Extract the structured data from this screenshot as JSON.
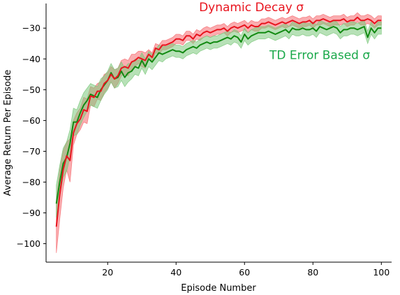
{
  "chart_data": {
    "type": "line",
    "title": "",
    "xlabel": "Episode Number",
    "ylabel": "Average Return Per Episode",
    "xlim": [
      2,
      103
    ],
    "ylim": [
      -106,
      -22
    ],
    "xticks": [
      20,
      40,
      60,
      80,
      100
    ],
    "yticks": [
      -100,
      -90,
      -80,
      -70,
      -60,
      -50,
      -40,
      -30
    ],
    "grid": false,
    "legend": "none",
    "x": [
      5,
      6,
      7,
      8,
      9,
      10,
      11,
      12,
      13,
      14,
      15,
      16,
      17,
      18,
      19,
      20,
      21,
      22,
      23,
      24,
      25,
      26,
      27,
      28,
      29,
      30,
      31,
      32,
      33,
      34,
      35,
      36,
      37,
      38,
      39,
      40,
      41,
      42,
      43,
      44,
      45,
      46,
      47,
      48,
      49,
      50,
      51,
      52,
      53,
      54,
      55,
      56,
      57,
      58,
      59,
      60,
      61,
      62,
      63,
      64,
      65,
      66,
      67,
      68,
      69,
      70,
      71,
      72,
      73,
      74,
      75,
      76,
      77,
      78,
      79,
      80,
      81,
      82,
      83,
      84,
      85,
      86,
      87,
      88,
      89,
      90,
      91,
      92,
      93,
      94,
      95,
      96,
      97,
      98,
      99,
      100
    ],
    "series": [
      {
        "name": "Dynamic Decay σ",
        "color": "#e8141e",
        "band_color": "#f56a6f",
        "values": [
          -94.5,
          -84.0,
          -76.0,
          -71.5,
          -73.0,
          -64.0,
          -61.0,
          -59.5,
          -56.5,
          -57.0,
          -52.0,
          -52.5,
          -50.5,
          -50.5,
          -48.0,
          -47.0,
          -45.0,
          -46.5,
          -45.5,
          -43.0,
          -42.5,
          -43.0,
          -41.0,
          -40.5,
          -39.5,
          -40.0,
          -40.5,
          -38.5,
          -39.5,
          -36.5,
          -37.0,
          -35.5,
          -35.5,
          -35.0,
          -34.5,
          -33.5,
          -33.5,
          -34.0,
          -32.5,
          -32.5,
          -33.5,
          -32.0,
          -32.5,
          -31.5,
          -31.0,
          -31.5,
          -31.0,
          -30.5,
          -30.5,
          -30.0,
          -31.0,
          -30.0,
          -29.5,
          -30.0,
          -29.5,
          -29.0,
          -30.0,
          -29.0,
          -29.5,
          -29.5,
          -28.5,
          -28.5,
          -28.0,
          -28.5,
          -29.0,
          -28.5,
          -28.0,
          -28.5,
          -28.0,
          -27.5,
          -28.0,
          -28.5,
          -28.0,
          -28.0,
          -27.5,
          -28.5,
          -27.5,
          -27.5,
          -27.0,
          -27.5,
          -28.0,
          -27.5,
          -27.5,
          -27.5,
          -27.0,
          -28.0,
          -27.5,
          -27.5,
          -26.5,
          -27.5,
          -27.5,
          -27.0,
          -27.5,
          -28.5,
          -27.5,
          -27.5
        ],
        "lower": [
          -103.0,
          -92.0,
          -82.0,
          -76.0,
          -80.0,
          -68.0,
          -64.5,
          -63.0,
          -60.5,
          -61.0,
          -55.0,
          -55.5,
          -53.0,
          -53.5,
          -51.0,
          -49.5,
          -47.5,
          -49.5,
          -48.0,
          -45.5,
          -45.0,
          -45.5,
          -43.5,
          -42.5,
          -41.5,
          -42.5,
          -43.0,
          -40.0,
          -41.0,
          -38.0,
          -38.5,
          -37.0,
          -37.0,
          -36.5,
          -36.0,
          -35.0,
          -35.0,
          -35.5,
          -34.0,
          -34.0,
          -35.0,
          -33.5,
          -34.0,
          -33.0,
          -32.5,
          -33.0,
          -32.5,
          -32.0,
          -32.0,
          -31.5,
          -32.5,
          -31.5,
          -31.0,
          -31.5,
          -31.0,
          -30.5,
          -31.5,
          -30.5,
          -31.0,
          -31.0,
          -30.0,
          -30.0,
          -29.5,
          -30.0,
          -30.5,
          -30.0,
          -29.5,
          -30.0,
          -29.5,
          -29.0,
          -29.5,
          -30.0,
          -29.5,
          -29.5,
          -29.0,
          -30.0,
          -29.0,
          -29.0,
          -28.5,
          -29.0,
          -29.5,
          -29.0,
          -29.0,
          -29.0,
          -28.5,
          -29.5,
          -29.0,
          -29.0,
          -28.0,
          -29.0,
          -29.0,
          -28.5,
          -29.0,
          -30.0,
          -29.0,
          -29.0
        ],
        "upper": [
          -86.0,
          -76.0,
          -70.0,
          -67.0,
          -66.0,
          -60.0,
          -57.5,
          -56.0,
          -52.5,
          -53.0,
          -49.0,
          -49.5,
          -48.0,
          -47.5,
          -45.0,
          -44.5,
          -42.5,
          -43.5,
          -43.0,
          -40.5,
          -40.0,
          -40.5,
          -38.5,
          -38.5,
          -37.5,
          -37.5,
          -38.0,
          -37.0,
          -38.0,
          -35.0,
          -35.5,
          -34.0,
          -34.0,
          -33.5,
          -33.0,
          -32.0,
          -32.0,
          -32.5,
          -31.0,
          -31.0,
          -32.0,
          -30.5,
          -31.0,
          -30.0,
          -29.5,
          -30.0,
          -29.5,
          -29.0,
          -29.0,
          -28.5,
          -29.5,
          -28.5,
          -28.0,
          -28.5,
          -28.0,
          -27.5,
          -28.5,
          -27.5,
          -28.0,
          -28.0,
          -27.0,
          -27.0,
          -26.5,
          -27.0,
          -27.5,
          -27.0,
          -26.5,
          -27.0,
          -26.5,
          -26.0,
          -26.5,
          -27.0,
          -26.5,
          -26.5,
          -26.0,
          -27.0,
          -26.0,
          -26.0,
          -25.5,
          -26.0,
          -26.5,
          -26.0,
          -26.0,
          -26.0,
          -25.5,
          -26.5,
          -26.0,
          -26.0,
          -25.0,
          -26.0,
          -26.0,
          -25.5,
          -26.0,
          -27.0,
          -26.0,
          -26.0
        ]
      },
      {
        "name": "TD Error Based σ",
        "color": "#128a12",
        "band_color": "#7cc87c",
        "values": [
          -87.0,
          -80.0,
          -74.0,
          -72.0,
          -67.5,
          -60.5,
          -60.5,
          -57.5,
          -55.0,
          -53.5,
          -51.5,
          -52.0,
          -52.5,
          -50.0,
          -48.5,
          -47.0,
          -44.5,
          -46.5,
          -46.0,
          -44.0,
          -46.0,
          -44.5,
          -44.0,
          -42.5,
          -43.0,
          -40.5,
          -42.5,
          -40.0,
          -41.0,
          -39.5,
          -38.0,
          -38.5,
          -38.0,
          -37.5,
          -37.0,
          -37.5,
          -37.5,
          -38.0,
          -37.0,
          -36.5,
          -36.0,
          -36.5,
          -35.5,
          -35.0,
          -34.5,
          -35.0,
          -34.5,
          -34.5,
          -34.0,
          -33.5,
          -33.0,
          -33.5,
          -32.5,
          -33.0,
          -34.5,
          -32.0,
          -33.5,
          -32.5,
          -32.0,
          -31.5,
          -31.5,
          -31.5,
          -31.0,
          -31.5,
          -32.0,
          -31.5,
          -31.0,
          -30.5,
          -31.5,
          -30.0,
          -30.5,
          -30.5,
          -30.0,
          -30.5,
          -30.5,
          -30.0,
          -31.0,
          -29.5,
          -30.0,
          -30.5,
          -30.0,
          -29.5,
          -30.0,
          -31.5,
          -30.5,
          -30.5,
          -30.0,
          -30.0,
          -30.5,
          -30.0,
          -29.5,
          -33.0,
          -30.0,
          -31.5,
          -30.0,
          -30.0
        ],
        "lower": [
          -91.5,
          -84.5,
          -78.5,
          -76.5,
          -72.0,
          -65.0,
          -64.5,
          -61.5,
          -59.0,
          -57.0,
          -55.0,
          -55.5,
          -56.0,
          -53.5,
          -51.5,
          -50.0,
          -47.5,
          -49.5,
          -49.0,
          -47.0,
          -49.0,
          -47.5,
          -46.5,
          -45.0,
          -45.5,
          -43.0,
          -45.0,
          -42.5,
          -43.5,
          -42.0,
          -40.5,
          -41.0,
          -40.0,
          -39.5,
          -39.0,
          -39.5,
          -39.5,
          -40.0,
          -39.0,
          -38.5,
          -38.0,
          -38.5,
          -37.5,
          -37.0,
          -36.5,
          -37.0,
          -36.5,
          -36.5,
          -36.0,
          -35.5,
          -35.0,
          -35.5,
          -34.5,
          -35.0,
          -36.5,
          -34.0,
          -35.5,
          -34.5,
          -34.0,
          -33.5,
          -33.5,
          -33.5,
          -33.0,
          -33.5,
          -34.0,
          -33.5,
          -33.0,
          -32.5,
          -33.5,
          -32.0,
          -32.5,
          -32.5,
          -32.0,
          -32.5,
          -32.5,
          -32.0,
          -33.0,
          -31.5,
          -32.0,
          -32.5,
          -32.0,
          -31.5,
          -32.0,
          -33.5,
          -32.5,
          -32.5,
          -32.0,
          -32.0,
          -32.5,
          -32.0,
          -31.5,
          -35.0,
          -32.0,
          -33.5,
          -32.0,
          -32.0
        ],
        "upper": [
          -81.0,
          -74.5,
          -69.0,
          -67.0,
          -63.0,
          -56.0,
          -56.5,
          -53.5,
          -51.0,
          -49.5,
          -48.0,
          -48.5,
          -49.0,
          -46.5,
          -45.5,
          -44.0,
          -41.5,
          -43.5,
          -43.0,
          -41.0,
          -43.0,
          -41.5,
          -41.5,
          -40.0,
          -40.5,
          -38.0,
          -40.0,
          -37.5,
          -38.5,
          -37.0,
          -35.5,
          -36.0,
          -36.0,
          -35.5,
          -35.0,
          -35.5,
          -35.5,
          -36.0,
          -35.0,
          -34.5,
          -34.0,
          -34.5,
          -33.5,
          -33.0,
          -32.5,
          -33.0,
          -32.5,
          -32.5,
          -32.0,
          -31.5,
          -31.0,
          -31.5,
          -30.5,
          -31.0,
          -32.5,
          -30.0,
          -31.5,
          -30.5,
          -30.0,
          -29.5,
          -29.5,
          -29.5,
          -29.0,
          -29.5,
          -30.0,
          -29.5,
          -29.0,
          -28.5,
          -29.5,
          -28.0,
          -28.5,
          -28.5,
          -28.0,
          -28.5,
          -28.5,
          -28.0,
          -29.0,
          -27.5,
          -28.0,
          -28.5,
          -28.0,
          -27.5,
          -28.0,
          -29.5,
          -28.5,
          -28.5,
          -28.0,
          -28.0,
          -28.5,
          -28.0,
          -27.5,
          -31.0,
          -28.0,
          -29.5,
          -28.0,
          -28.0
        ]
      }
    ],
    "annotations": [
      {
        "text": "Dynamic Decay σ",
        "x": 62,
        "y": -24.5,
        "color": "#e8141e"
      },
      {
        "text": "TD Error Based σ",
        "x": 82,
        "y": -40,
        "color": "#1aa84a"
      }
    ]
  }
}
